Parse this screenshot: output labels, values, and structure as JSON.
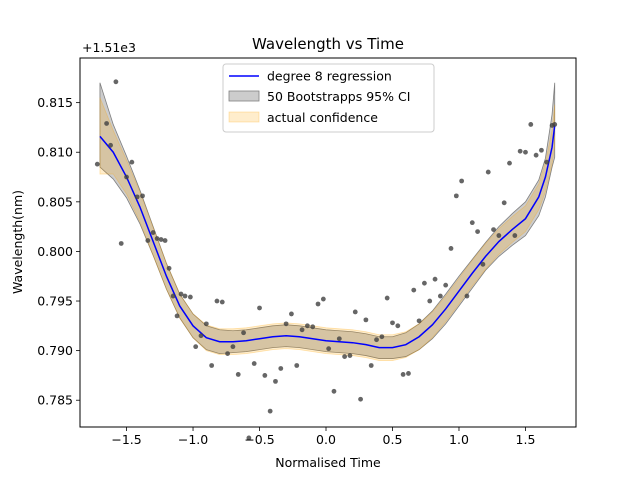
{
  "chart_data": {
    "type": "line",
    "title": "Wavelength vs Time",
    "xlabel": "Normalised Time",
    "ylabel": "Wavelength(nm)",
    "y_offset_label": "+1.51e3",
    "xlim": [
      -1.85,
      1.88
    ],
    "ylim": [
      0.7823,
      0.8195
    ],
    "xticks": [
      -1.5,
      -1.0,
      -0.5,
      0.0,
      0.5,
      1.0,
      1.5
    ],
    "xtick_labels": [
      "−1.5",
      "−1.0",
      "−0.5",
      "0.0",
      "0.5",
      "1.0",
      "1.5"
    ],
    "yticks": [
      0.785,
      0.79,
      0.795,
      0.8,
      0.805,
      0.81,
      0.815
    ],
    "ytick_labels": [
      "0.785",
      "0.790",
      "0.795",
      "0.800",
      "0.805",
      "0.810",
      "0.815"
    ],
    "legend_position": "upper center",
    "legend": [
      {
        "label": "degree 8 regression",
        "kind": "line",
        "color": "#0000ff"
      },
      {
        "label": "50 Bootstrapps 95% CI",
        "kind": "band",
        "color": "#808080"
      },
      {
        "label": "actual confidence",
        "kind": "band",
        "color": "#ffa500"
      }
    ],
    "regression": {
      "name": "degree 8 regression",
      "x": [
        -1.7,
        -1.6,
        -1.5,
        -1.4,
        -1.3,
        -1.2,
        -1.1,
        -1.0,
        -0.9,
        -0.8,
        -0.7,
        -0.6,
        -0.5,
        -0.4,
        -0.3,
        -0.2,
        -0.1,
        0.0,
        0.1,
        0.2,
        0.3,
        0.4,
        0.5,
        0.6,
        0.7,
        0.8,
        0.9,
        1.0,
        1.1,
        1.2,
        1.3,
        1.4,
        1.5,
        1.6,
        1.65,
        1.7,
        1.72
      ],
      "y": [
        0.8116,
        0.81,
        0.8075,
        0.8045,
        0.801,
        0.7975,
        0.7945,
        0.7925,
        0.7913,
        0.7909,
        0.7909,
        0.791,
        0.7912,
        0.7914,
        0.7915,
        0.7914,
        0.7912,
        0.791,
        0.7909,
        0.7908,
        0.7906,
        0.7903,
        0.7903,
        0.7906,
        0.7914,
        0.7926,
        0.7942,
        0.796,
        0.7978,
        0.7995,
        0.801,
        0.8022,
        0.8033,
        0.8055,
        0.8075,
        0.8105,
        0.8127
      ]
    },
    "bootstrap_ci": {
      "name": "50 Bootstrapps 95% CI",
      "upper": [
        0.817,
        0.8128,
        0.8096,
        0.8062,
        0.8025,
        0.7988,
        0.7957,
        0.7937,
        0.7925,
        0.7921,
        0.792,
        0.7921,
        0.7923,
        0.7925,
        0.7926,
        0.7925,
        0.7923,
        0.7921,
        0.792,
        0.7919,
        0.7917,
        0.7914,
        0.7914,
        0.7918,
        0.7927,
        0.794,
        0.7957,
        0.7975,
        0.7992,
        0.8009,
        0.8025,
        0.8038,
        0.805,
        0.8072,
        0.8094,
        0.8138,
        0.817
      ],
      "lower": [
        0.8085,
        0.8073,
        0.8054,
        0.8028,
        0.7996,
        0.7962,
        0.7933,
        0.7913,
        0.7901,
        0.7897,
        0.7898,
        0.7899,
        0.7901,
        0.7903,
        0.7904,
        0.7903,
        0.7901,
        0.7899,
        0.7898,
        0.7897,
        0.7895,
        0.7892,
        0.7892,
        0.7894,
        0.7901,
        0.7912,
        0.7927,
        0.7945,
        0.7963,
        0.7981,
        0.7995,
        0.8006,
        0.8016,
        0.8036,
        0.8055,
        0.8085,
        0.8095
      ]
    },
    "actual_ci": {
      "name": "actual confidence",
      "upper": [
        0.8155,
        0.8122,
        0.8092,
        0.806,
        0.8024,
        0.7988,
        0.7957,
        0.7937,
        0.7926,
        0.7922,
        0.7922,
        0.7923,
        0.7925,
        0.7927,
        0.7928,
        0.7927,
        0.7925,
        0.7923,
        0.7922,
        0.7921,
        0.7919,
        0.7916,
        0.7916,
        0.7919,
        0.7927,
        0.7939,
        0.7955,
        0.7973,
        0.7991,
        0.8008,
        0.8023,
        0.8035,
        0.8046,
        0.8068,
        0.809,
        0.8122,
        0.8148
      ],
      "lower": [
        0.8078,
        0.8078,
        0.8058,
        0.803,
        0.7996,
        0.7962,
        0.7933,
        0.7913,
        0.79,
        0.7896,
        0.7896,
        0.7897,
        0.7899,
        0.7901,
        0.7902,
        0.7901,
        0.7899,
        0.7897,
        0.7896,
        0.7895,
        0.7893,
        0.789,
        0.789,
        0.7893,
        0.7901,
        0.7913,
        0.7929,
        0.7947,
        0.7965,
        0.7982,
        0.7997,
        0.8009,
        0.802,
        0.8042,
        0.806,
        0.8088,
        0.8106
      ]
    },
    "scatter": {
      "color": "#404040",
      "x": [
        -1.72,
        -1.65,
        -1.62,
        -1.58,
        -1.54,
        -1.5,
        -1.46,
        -1.42,
        -1.38,
        -1.34,
        -1.3,
        -1.27,
        -1.24,
        -1.21,
        -1.18,
        -1.15,
        -1.12,
        -1.09,
        -1.06,
        -1.02,
        -0.98,
        -0.94,
        -0.9,
        -0.86,
        -0.82,
        -0.78,
        -0.74,
        -0.7,
        -0.66,
        -0.62,
        -0.58,
        -0.54,
        -0.5,
        -0.46,
        -0.42,
        -0.38,
        -0.34,
        -0.3,
        -0.26,
        -0.22,
        -0.18,
        -0.14,
        -0.1,
        -0.06,
        -0.02,
        0.02,
        0.06,
        0.1,
        0.14,
        0.18,
        0.22,
        0.26,
        0.3,
        0.34,
        0.38,
        0.42,
        0.46,
        0.5,
        0.54,
        0.58,
        0.62,
        0.66,
        0.7,
        0.74,
        0.78,
        0.82,
        0.86,
        0.9,
        0.94,
        0.98,
        1.02,
        1.06,
        1.1,
        1.14,
        1.18,
        1.22,
        1.26,
        1.3,
        1.34,
        1.38,
        1.42,
        1.46,
        1.5,
        1.54,
        1.58,
        1.62,
        1.66,
        1.7,
        1.72
      ],
      "y": [
        0.8088,
        0.8129,
        0.8107,
        0.8171,
        0.8008,
        0.8075,
        0.809,
        0.8055,
        0.8056,
        0.8011,
        0.8019,
        0.8013,
        0.8012,
        0.8011,
        0.7983,
        0.7955,
        0.7935,
        0.7957,
        0.7955,
        0.7954,
        0.7904,
        0.7915,
        0.7927,
        0.7885,
        0.795,
        0.7949,
        0.7897,
        0.7904,
        0.7876,
        0.7918,
        0.7812,
        0.7887,
        0.7943,
        0.7875,
        0.7839,
        0.7869,
        0.7882,
        0.7927,
        0.7937,
        0.7885,
        0.7921,
        0.7925,
        0.7924,
        0.7947,
        0.7952,
        0.7902,
        0.7859,
        0.7912,
        0.7894,
        0.7895,
        0.7939,
        0.7851,
        0.7931,
        0.7885,
        0.7911,
        0.7914,
        0.7953,
        0.7928,
        0.7925,
        0.7876,
        0.7877,
        0.7961,
        0.793,
        0.7968,
        0.795,
        0.7972,
        0.7955,
        0.7966,
        0.8003,
        0.8056,
        0.8071,
        0.7955,
        0.8029,
        0.802,
        0.7987,
        0.808,
        0.8022,
        0.8016,
        0.8049,
        0.8089,
        0.8016,
        0.8101,
        0.81,
        0.8128,
        0.8097,
        0.8102,
        0.809,
        0.8127,
        0.8128
      ]
    }
  }
}
